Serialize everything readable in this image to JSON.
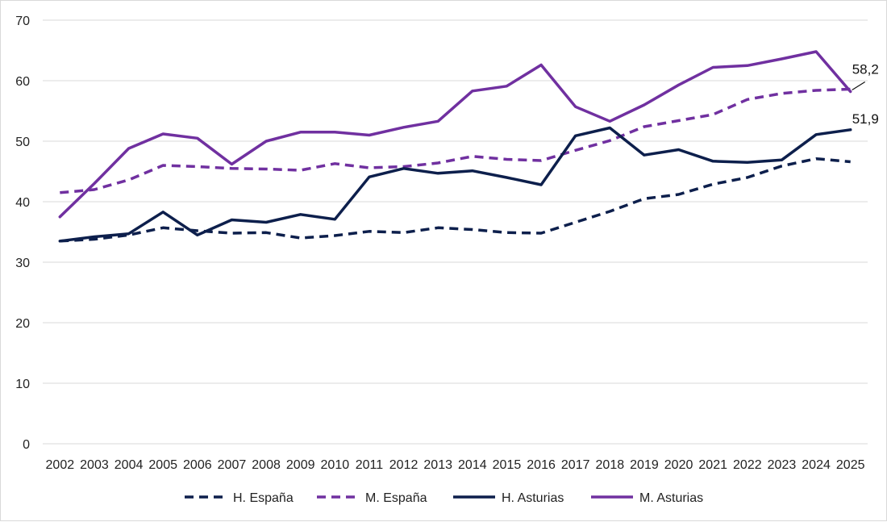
{
  "chart_data": {
    "type": "line",
    "title": "",
    "xlabel": "",
    "ylabel": "",
    "ylim": [
      0,
      70
    ],
    "yticks": [
      "0",
      "10",
      "20",
      "30",
      "40",
      "50",
      "60",
      "70"
    ],
    "categories": [
      "2002",
      "2003",
      "2004",
      "2005",
      "2006",
      "2007",
      "2008",
      "2009",
      "2010",
      "2011",
      "2012",
      "2013",
      "2014",
      "2015",
      "2016",
      "2017",
      "2018",
      "2019",
      "2020",
      "2021",
      "2022",
      "2023",
      "2024",
      "2025"
    ],
    "grid": "horizontal",
    "legend_position": "bottom",
    "series": [
      {
        "name": "H. España",
        "color": "#0d1f4c",
        "dashed": true,
        "values": [
          33.5,
          33.8,
          34.5,
          35.7,
          35.2,
          34.8,
          34.9,
          34.0,
          34.4,
          35.1,
          34.9,
          35.7,
          35.4,
          34.9,
          34.8,
          36.6,
          38.4,
          40.5,
          41.2,
          42.9,
          44.0,
          45.9,
          47.1,
          46.6
        ]
      },
      {
        "name": "M. España",
        "color": "#7030a0",
        "dashed": true,
        "values": [
          41.5,
          42.0,
          43.6,
          46.0,
          45.8,
          45.5,
          45.4,
          45.2,
          46.3,
          45.6,
          45.8,
          46.4,
          47.5,
          47.0,
          46.8,
          48.5,
          50.1,
          52.4,
          53.4,
          54.4,
          56.9,
          57.9,
          58.4,
          58.6
        ]
      },
      {
        "name": "H. Asturias",
        "color": "#0d1f4c",
        "dashed": false,
        "values": [
          33.5,
          34.2,
          34.7,
          38.3,
          34.5,
          37.0,
          36.6,
          37.9,
          37.1,
          44.1,
          45.5,
          44.7,
          45.1,
          44.0,
          42.8,
          50.9,
          52.2,
          47.7,
          48.6,
          46.7,
          46.5,
          46.9,
          51.1,
          51.9
        ]
      },
      {
        "name": "M. Asturias",
        "color": "#7030a0",
        "dashed": false,
        "values": [
          37.5,
          43.0,
          48.8,
          51.2,
          50.5,
          46.2,
          50.0,
          51.5,
          51.5,
          51.0,
          52.3,
          53.3,
          58.3,
          59.1,
          62.6,
          55.7,
          53.3,
          56.0,
          59.3,
          62.2,
          62.5,
          63.6,
          64.8,
          58.2
        ]
      }
    ],
    "annotations": [
      {
        "text": "58,2",
        "series": "M. Asturias",
        "x": "2025",
        "y": 58.2
      },
      {
        "text": "51,9",
        "series": "H. Asturias",
        "x": "2025",
        "y": 51.9
      }
    ]
  }
}
